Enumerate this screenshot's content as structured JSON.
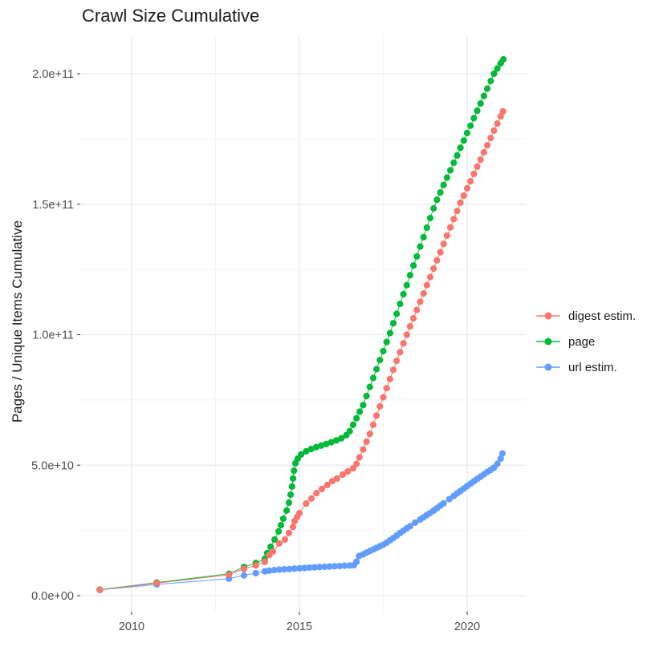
{
  "chart": {
    "title": "Crawl Size Cumulative",
    "y_axis_label": "Pages / Unique Items Cumulative",
    "x_axis_label": ""
  },
  "chart_data": {
    "type": "scatter",
    "style": "points-with-connecting-lines",
    "title": "Crawl Size Cumulative",
    "xlabel": "",
    "ylabel": "Pages / Unique Items Cumulative",
    "grid": true,
    "legend_position": "right",
    "background": "#ffffff",
    "major_grid_color": "#e9e9e9",
    "minor_grid_color": "#f4f4f4",
    "tick_label_color": "#4d4d4d",
    "xlim": [
      2008.5,
      2021.8
    ],
    "ylim_billions": [
      -6,
      214
    ],
    "x_ticks": [
      2010,
      2015,
      2020
    ],
    "x_tick_labels": [
      "2010",
      "2015",
      "2020"
    ],
    "x_minor_ticks": [
      2012.5,
      2017.5
    ],
    "y_ticks_billions": [
      0,
      50,
      100,
      150,
      200
    ],
    "y_tick_labels": [
      "0.0e+00",
      "5.0e+10",
      "1.0e+11",
      "1.5e+11",
      "2.0e+11"
    ],
    "y_minor_ticks_billions": [
      25,
      75,
      125,
      175
    ],
    "value_unit": "items, billions (1e9)",
    "series": [
      {
        "name": "digest estim.",
        "color": "#F8766D",
        "points": [
          [
            2009.05,
            2.2
          ],
          [
            2010.75,
            4.8
          ],
          [
            2012.9,
            8.0
          ],
          [
            2013.35,
            10.3
          ],
          [
            2013.7,
            11.6
          ],
          [
            2013.97,
            13.0
          ],
          [
            2014.1,
            15.5
          ],
          [
            2014.21,
            16.9
          ],
          [
            2014.4,
            20.0
          ],
          [
            2014.57,
            21.5
          ],
          [
            2014.69,
            24.0
          ],
          [
            2014.81,
            26.4
          ],
          [
            2014.86,
            28.6
          ],
          [
            2014.93,
            30.1
          ],
          [
            2015.0,
            31.6
          ],
          [
            2015.2,
            35.3
          ],
          [
            2015.36,
            37.2
          ],
          [
            2015.51,
            39.3
          ],
          [
            2015.67,
            40.9
          ],
          [
            2015.83,
            42.4
          ],
          [
            2015.98,
            43.9
          ],
          [
            2016.12,
            44.9
          ],
          [
            2016.29,
            46.4
          ],
          [
            2016.44,
            47.6
          ],
          [
            2016.6,
            48.8
          ],
          [
            2016.7,
            50.5
          ],
          [
            2016.79,
            53.0
          ],
          [
            2016.9,
            56.0
          ],
          [
            2017.0,
            59.0
          ],
          [
            2017.1,
            62.0
          ],
          [
            2017.2,
            65.5
          ],
          [
            2017.3,
            69.0
          ],
          [
            2017.4,
            72.5
          ],
          [
            2017.5,
            76.0
          ],
          [
            2017.6,
            79.5
          ],
          [
            2017.7,
            83.0
          ],
          [
            2017.8,
            86.5
          ],
          [
            2017.9,
            90.0
          ],
          [
            2018.0,
            93.3
          ],
          [
            2018.1,
            96.7
          ],
          [
            2018.2,
            100.0
          ],
          [
            2018.3,
            103.2
          ],
          [
            2018.4,
            106.3
          ],
          [
            2018.5,
            109.5
          ],
          [
            2018.6,
            112.6
          ],
          [
            2018.7,
            115.8
          ],
          [
            2018.8,
            119.0
          ],
          [
            2018.9,
            122.1
          ],
          [
            2019.0,
            125.3
          ],
          [
            2019.1,
            128.5
          ],
          [
            2019.2,
            131.6
          ],
          [
            2019.3,
            134.8
          ],
          [
            2019.4,
            138.0
          ],
          [
            2019.5,
            141.1
          ],
          [
            2019.6,
            144.3
          ],
          [
            2019.7,
            147.4
          ],
          [
            2019.8,
            150.6
          ],
          [
            2019.9,
            153.3
          ],
          [
            2020.0,
            156.1
          ],
          [
            2020.1,
            158.8
          ],
          [
            2020.2,
            161.6
          ],
          [
            2020.3,
            164.4
          ],
          [
            2020.4,
            167.1
          ],
          [
            2020.5,
            169.9
          ],
          [
            2020.6,
            172.6
          ],
          [
            2020.7,
            175.4
          ],
          [
            2020.8,
            178.2
          ],
          [
            2020.9,
            180.9
          ],
          [
            2021.0,
            183.7
          ],
          [
            2021.07,
            185.6
          ]
        ]
      },
      {
        "name": "page",
        "color": "#00BA38",
        "points": [
          [
            2009.05,
            2.3
          ],
          [
            2010.75,
            5.0
          ],
          [
            2012.9,
            8.4
          ],
          [
            2013.35,
            11.0
          ],
          [
            2013.7,
            12.5
          ],
          [
            2013.97,
            14.1
          ],
          [
            2014.04,
            16.3
          ],
          [
            2014.14,
            18.7
          ],
          [
            2014.26,
            21.5
          ],
          [
            2014.38,
            24.6
          ],
          [
            2014.45,
            27.0
          ],
          [
            2014.52,
            29.5
          ],
          [
            2014.62,
            32.6
          ],
          [
            2014.69,
            35.6
          ],
          [
            2014.74,
            38.7
          ],
          [
            2014.78,
            41.8
          ],
          [
            2014.81,
            44.9
          ],
          [
            2014.84,
            47.9
          ],
          [
            2014.88,
            50.7
          ],
          [
            2014.95,
            52.5
          ],
          [
            2015.05,
            54.1
          ],
          [
            2015.2,
            55.3
          ],
          [
            2015.35,
            56.2
          ],
          [
            2015.5,
            56.9
          ],
          [
            2015.65,
            57.5
          ],
          [
            2015.8,
            58.1
          ],
          [
            2015.95,
            58.8
          ],
          [
            2016.1,
            59.5
          ],
          [
            2016.25,
            60.3
          ],
          [
            2016.4,
            61.5
          ],
          [
            2016.5,
            63.0
          ],
          [
            2016.6,
            65.5
          ],
          [
            2016.7,
            68.0
          ],
          [
            2016.8,
            70.5
          ],
          [
            2016.9,
            73.0
          ],
          [
            2017.0,
            76.5
          ],
          [
            2017.1,
            80.0
          ],
          [
            2017.2,
            83.4
          ],
          [
            2017.3,
            86.8
          ],
          [
            2017.4,
            90.3
          ],
          [
            2017.5,
            93.7
          ],
          [
            2017.6,
            97.2
          ],
          [
            2017.7,
            100.6
          ],
          [
            2017.8,
            104.4
          ],
          [
            2017.9,
            108.0
          ],
          [
            2018.0,
            111.8
          ],
          [
            2018.1,
            115.5
          ],
          [
            2018.2,
            119.0
          ],
          [
            2018.3,
            122.8
          ],
          [
            2018.4,
            126.5
          ],
          [
            2018.5,
            130.0
          ],
          [
            2018.6,
            133.8
          ],
          [
            2018.7,
            137.4
          ],
          [
            2018.8,
            141.0
          ],
          [
            2018.9,
            144.7
          ],
          [
            2019.0,
            148.4
          ],
          [
            2019.1,
            151.7
          ],
          [
            2019.2,
            154.5
          ],
          [
            2019.3,
            157.4
          ],
          [
            2019.4,
            160.2
          ],
          [
            2019.5,
            163.0
          ],
          [
            2019.6,
            165.9
          ],
          [
            2019.7,
            168.7
          ],
          [
            2019.8,
            171.6
          ],
          [
            2019.9,
            174.4
          ],
          [
            2020.0,
            177.3
          ],
          [
            2020.1,
            180.1
          ],
          [
            2020.2,
            183.0
          ],
          [
            2020.3,
            185.8
          ],
          [
            2020.4,
            188.6
          ],
          [
            2020.5,
            191.5
          ],
          [
            2020.6,
            194.3
          ],
          [
            2020.7,
            197.2
          ],
          [
            2020.8,
            200.0
          ],
          [
            2020.9,
            202.0
          ],
          [
            2021.0,
            204.0
          ],
          [
            2021.08,
            205.5
          ]
        ]
      },
      {
        "name": "url estim.",
        "color": "#619CFF",
        "points": [
          [
            2009.05,
            2.2
          ],
          [
            2010.75,
            4.3
          ],
          [
            2012.9,
            6.5
          ],
          [
            2013.35,
            7.8
          ],
          [
            2013.7,
            8.6
          ],
          [
            2013.97,
            9.3
          ],
          [
            2014.1,
            9.6
          ],
          [
            2014.25,
            9.8
          ],
          [
            2014.4,
            10.0
          ],
          [
            2014.55,
            10.1
          ],
          [
            2014.7,
            10.2
          ],
          [
            2014.85,
            10.35
          ],
          [
            2015.0,
            10.5
          ],
          [
            2015.15,
            10.6
          ],
          [
            2015.3,
            10.75
          ],
          [
            2015.45,
            10.85
          ],
          [
            2015.6,
            10.95
          ],
          [
            2015.75,
            11.05
          ],
          [
            2015.9,
            11.15
          ],
          [
            2016.05,
            11.25
          ],
          [
            2016.2,
            11.35
          ],
          [
            2016.35,
            11.5
          ],
          [
            2016.5,
            11.55
          ],
          [
            2016.62,
            11.65
          ],
          [
            2016.7,
            13.0
          ],
          [
            2016.78,
            15.2
          ],
          [
            2016.9,
            15.8
          ],
          [
            2017.0,
            16.5
          ],
          [
            2017.1,
            17.1
          ],
          [
            2017.2,
            17.7
          ],
          [
            2017.3,
            18.3
          ],
          [
            2017.4,
            18.9
          ],
          [
            2017.5,
            19.5
          ],
          [
            2017.6,
            20.3
          ],
          [
            2017.7,
            21.2
          ],
          [
            2017.8,
            22.1
          ],
          [
            2017.9,
            23.0
          ],
          [
            2018.0,
            24.0
          ],
          [
            2018.1,
            24.9
          ],
          [
            2018.2,
            25.8
          ],
          [
            2018.3,
            26.6
          ],
          [
            2018.45,
            28.0
          ],
          [
            2018.6,
            29.2
          ],
          [
            2018.7,
            30.0
          ],
          [
            2018.8,
            30.9
          ],
          [
            2018.9,
            31.7
          ],
          [
            2019.0,
            32.6
          ],
          [
            2019.1,
            33.5
          ],
          [
            2019.2,
            34.5
          ],
          [
            2019.3,
            35.4
          ],
          [
            2019.47,
            37.0
          ],
          [
            2019.6,
            38.2
          ],
          [
            2019.7,
            39.2
          ],
          [
            2019.8,
            40.1
          ],
          [
            2019.9,
            41.0
          ],
          [
            2020.0,
            42.0
          ],
          [
            2020.1,
            42.9
          ],
          [
            2020.2,
            43.8
          ],
          [
            2020.3,
            44.7
          ],
          [
            2020.4,
            45.6
          ],
          [
            2020.5,
            46.5
          ],
          [
            2020.6,
            47.4
          ],
          [
            2020.7,
            48.2
          ],
          [
            2020.8,
            49.0
          ],
          [
            2020.9,
            50.5
          ],
          [
            2021.0,
            52.5
          ],
          [
            2021.05,
            54.5
          ]
        ]
      }
    ]
  }
}
